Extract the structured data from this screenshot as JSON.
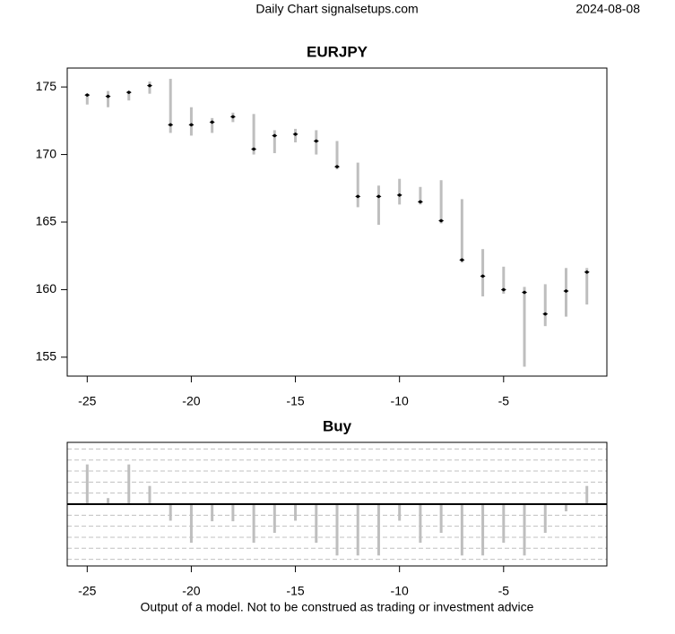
{
  "header": {
    "title": "Daily Chart signalsetups.com",
    "date": "2024-08-08"
  },
  "footer": "Output of a model. Not to be construed as trading or investment advice",
  "chart_data": [
    {
      "type": "ohlc",
      "title": "EURJPY",
      "color": "#bebebe",
      "marker_color": "#000000",
      "x": [
        -25,
        -24,
        -23,
        -22,
        -21,
        -20,
        -19,
        -18,
        -17,
        -16,
        -15,
        -14,
        -13,
        -12,
        -11,
        -10,
        -9,
        -8,
        -7,
        -6,
        -5,
        -4,
        -3,
        -2,
        -1
      ],
      "high": [
        174.5,
        174.7,
        174.7,
        175.4,
        175.6,
        173.5,
        172.7,
        173.1,
        173.0,
        171.8,
        171.9,
        171.8,
        171.0,
        169.4,
        167.7,
        168.2,
        167.6,
        168.1,
        166.7,
        163.0,
        161.7,
        160.2,
        160.4,
        161.6,
        161.6
      ],
      "low": [
        173.7,
        173.5,
        174.0,
        174.5,
        171.6,
        171.4,
        171.6,
        172.4,
        170.0,
        170.1,
        170.9,
        170.0,
        168.9,
        166.1,
        164.8,
        166.3,
        166.3,
        164.9,
        162.0,
        159.5,
        159.7,
        154.3,
        157.3,
        158.0,
        158.9
      ],
      "close": [
        174.4,
        174.3,
        174.6,
        175.1,
        172.2,
        172.2,
        172.4,
        172.8,
        170.4,
        171.4,
        171.5,
        171.0,
        169.1,
        166.9,
        166.9,
        167.0,
        166.5,
        165.1,
        162.2,
        161.0,
        160.0,
        159.8,
        158.2,
        159.9,
        161.3
      ],
      "xlim": [
        -25.96,
        -0.04
      ],
      "ylim": [
        153.6,
        176.4
      ],
      "xticks": [
        -25,
        -20,
        -15,
        -10,
        -5
      ],
      "yticks": [
        155,
        160,
        165,
        170,
        175
      ]
    },
    {
      "type": "bar",
      "title": "Buy",
      "color": "#bebebe",
      "x": [
        -25,
        -24,
        -23,
        -22,
        -21,
        -20,
        -19,
        -18,
        -17,
        -16,
        -15,
        -14,
        -13,
        -12,
        -11,
        -10,
        -9,
        -8,
        -7,
        -6,
        -5,
        -4,
        -3,
        -2,
        -1
      ],
      "values": [
        0.72,
        0.11,
        0.72,
        0.33,
        -0.3,
        -0.7,
        -0.31,
        -0.31,
        -0.7,
        -0.52,
        -0.3,
        -0.7,
        -0.93,
        -0.93,
        -0.93,
        -0.3,
        -0.7,
        -0.52,
        -0.93,
        -0.93,
        -0.7,
        -0.93,
        -0.52,
        -0.13,
        0.33
      ],
      "xlim": [
        -25.96,
        -0.04
      ],
      "ylim": [
        -1.12,
        1.12
      ],
      "xticks": [
        -25,
        -20,
        -15,
        -10,
        -5
      ],
      "ygrid": [
        -1.0,
        -0.8,
        -0.6,
        -0.4,
        -0.2,
        0.2,
        0.4,
        0.6,
        0.8,
        1.0
      ]
    }
  ]
}
